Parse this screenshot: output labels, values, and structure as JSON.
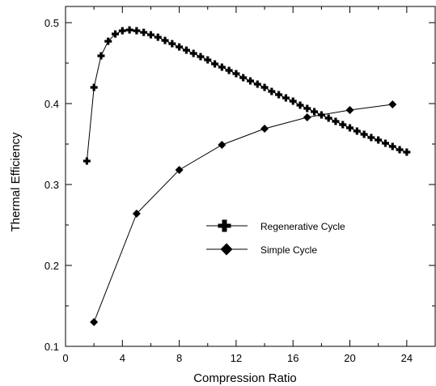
{
  "chart_data": {
    "type": "line",
    "title": "",
    "xlabel": "Compression Ratio",
    "ylabel": "Thermal Efficiency",
    "xlim": [
      0,
      26
    ],
    "ylim": [
      0.1,
      0.52
    ],
    "xticks": [
      0,
      4,
      8,
      12,
      16,
      20,
      24
    ],
    "yticks": [
      0.1,
      0.2,
      0.3,
      0.4,
      0.5
    ],
    "xtick_labels": [
      "0",
      "4",
      "8",
      "12",
      "16",
      "20",
      "24"
    ],
    "ytick_labels": [
      "0.1",
      "0.2",
      "0.3",
      "0.4",
      "0.5"
    ],
    "grid": false,
    "legend_position": "center-right",
    "series": [
      {
        "name": "Regenerative Cycle",
        "marker": "plus",
        "x": [
          1.5,
          2.0,
          2.5,
          3.0,
          3.5,
          4.0,
          4.5,
          5.0,
          5.5,
          6.0,
          6.5,
          7.0,
          7.5,
          8.0,
          8.5,
          9.0,
          9.5,
          10.0,
          10.5,
          11.0,
          11.5,
          12.0,
          12.5,
          13.0,
          13.5,
          14.0,
          14.5,
          15.0,
          15.5,
          16.0,
          16.5,
          17.0,
          17.5,
          18.0,
          18.5,
          19.0,
          19.5,
          20.0,
          20.5,
          21.0,
          21.5,
          22.0,
          22.5,
          23.0,
          23.5,
          24.0
        ],
        "y": [
          0.329,
          0.42,
          0.459,
          0.477,
          0.486,
          0.49,
          0.491,
          0.49,
          0.488,
          0.485,
          0.482,
          0.478,
          0.474,
          0.47,
          0.466,
          0.462,
          0.458,
          0.454,
          0.449,
          0.445,
          0.441,
          0.437,
          0.432,
          0.428,
          0.424,
          0.42,
          0.415,
          0.411,
          0.407,
          0.403,
          0.398,
          0.394,
          0.39,
          0.386,
          0.382,
          0.378,
          0.374,
          0.37,
          0.366,
          0.362,
          0.358,
          0.355,
          0.351,
          0.347,
          0.343,
          0.34
        ]
      },
      {
        "name": "Simple Cycle",
        "marker": "diamond",
        "x": [
          2,
          5,
          8,
          11,
          14,
          17,
          20,
          23
        ],
        "y": [
          0.13,
          0.264,
          0.318,
          0.349,
          0.369,
          0.383,
          0.392,
          0.399
        ]
      }
    ]
  }
}
